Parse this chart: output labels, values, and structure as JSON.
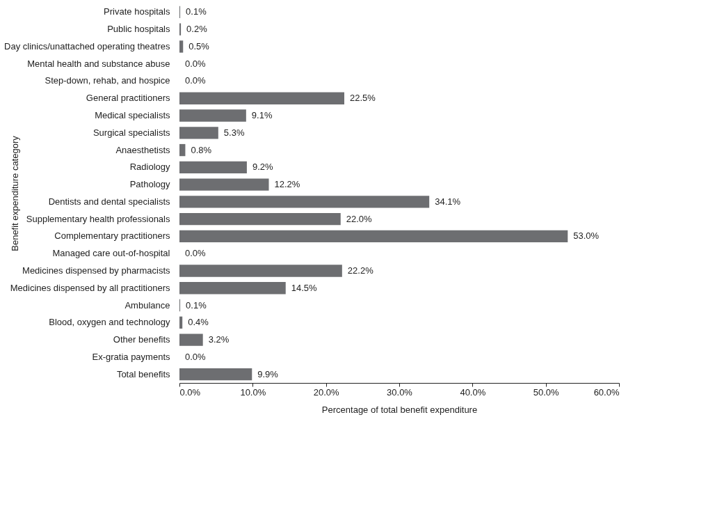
{
  "chart_data": {
    "type": "bar",
    "orientation": "horizontal",
    "categories": [
      "Private hospitals",
      "Public hospitals",
      "Day clinics/unattached operating theatres",
      "Mental health and substance abuse",
      "Step-down, rehab, and hospice",
      "General practitioners",
      "Medical specialists",
      "Surgical specialists",
      "Anaesthetists",
      "Radiology",
      "Pathology",
      "Dentists and dental specialists",
      "Supplementary health professionals",
      "Complementary practitioners",
      "Managed care out-of-hospital",
      "Medicines dispensed by pharmacists",
      "Medicines dispensed by all practitioners",
      "Ambulance",
      "Blood, oxygen and technology",
      "Other benefits",
      "Ex-gratia payments",
      "Total benefits"
    ],
    "values": [
      0.1,
      0.2,
      0.5,
      0.0,
      0.0,
      22.5,
      9.1,
      5.3,
      0.8,
      9.2,
      12.2,
      34.1,
      22.0,
      53.0,
      0.0,
      22.2,
      14.5,
      0.1,
      0.4,
      3.2,
      0.0,
      9.9
    ],
    "value_labels": [
      "0.1%",
      "0.2%",
      "0.5%",
      "0.0%",
      "0.0%",
      "22.5%",
      "9.1%",
      "5.3%",
      "0.8%",
      "9.2%",
      "12.2%",
      "34.1%",
      "22.0%",
      "53.0%",
      "0.0%",
      "22.2%",
      "14.5%",
      "0.1%",
      "0.4%",
      "3.2%",
      "0.0%",
      "9.9%"
    ],
    "color": "#6d6e71",
    "xlim": [
      0,
      60
    ],
    "xticks": [
      {
        "value": 0,
        "label": "0.0%"
      },
      {
        "value": 10,
        "label": "10.0%"
      },
      {
        "value": 20,
        "label": "20.0%"
      },
      {
        "value": 30,
        "label": "30.0%"
      },
      {
        "value": 40,
        "label": "40.0%"
      },
      {
        "value": 50,
        "label": "50.0%"
      },
      {
        "value": 60,
        "label": "60.0%"
      }
    ],
    "xlabel": "Percentage of total benefit expenditure",
    "ylabel": "Benefit expenditure category",
    "grid": false
  }
}
